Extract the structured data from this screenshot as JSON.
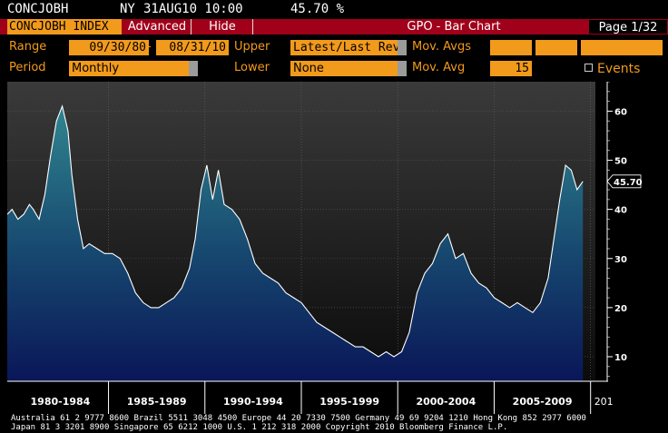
{
  "header": {
    "ticker": "CONCJOBH",
    "location": "NY",
    "datetime": "31AUG10 10:00",
    "value": "45.70 %"
  },
  "toolbar": {
    "security": "CONCJOBH INDEX",
    "advanced_label": "Advanced",
    "hide_label": "Hide",
    "function_title": "GPO - Bar Chart",
    "page": "Page 1/32"
  },
  "params": {
    "range_label": "Range",
    "range_start": "09/30/80",
    "range_sep": "-",
    "range_end": "08/31/10",
    "upper_label": "Upper",
    "upper_value": "Latest/Last Revi",
    "movavgs_label": "Mov. Avgs",
    "period_label": "Period",
    "period_value": "Monthly",
    "lower_label": "Lower",
    "lower_value": "None",
    "movavg_label": "Mov. Avg",
    "movavg_value": "15",
    "events_label": "Events"
  },
  "colors": {
    "accent": "#f29a1b",
    "function_bar": "#a0001a",
    "area_top": "#2e7f8c",
    "area_bottom": "#0a1658",
    "line": "#ffffff"
  },
  "chart_data": {
    "type": "area",
    "title": "",
    "xlabel": "",
    "ylabel": "",
    "ylim": [
      5,
      66
    ],
    "xlim": [
      1980.75,
      2011.25
    ],
    "y_ticks": [
      "10",
      "20",
      "30",
      "40",
      "50",
      "60"
    ],
    "x_periods": [
      "1980-1984",
      "1985-1989",
      "1990-1994",
      "1995-1999",
      "2000-2004",
      "2005-2009",
      "201"
    ],
    "last_value_label": "45.70",
    "grid": true,
    "x": [
      1980.75,
      1981.0,
      1981.3,
      1981.6,
      1981.9,
      1982.1,
      1982.4,
      1982.7,
      1983.0,
      1983.3,
      1983.6,
      1983.9,
      1984.1,
      1984.4,
      1984.7,
      1985.0,
      1985.4,
      1985.8,
      1986.2,
      1986.6,
      1987.0,
      1987.4,
      1987.8,
      1988.2,
      1988.6,
      1989.0,
      1989.4,
      1989.8,
      1990.2,
      1990.5,
      1990.8,
      1991.1,
      1991.4,
      1991.7,
      1992.0,
      1992.4,
      1992.8,
      1993.2,
      1993.6,
      1994.0,
      1994.4,
      1994.8,
      1995.2,
      1995.6,
      1996.0,
      1996.4,
      1996.8,
      1997.2,
      1997.6,
      1998.0,
      1998.4,
      1998.8,
      1999.2,
      1999.6,
      2000.0,
      2000.4,
      2000.8,
      2001.2,
      2001.6,
      2002.0,
      2002.4,
      2002.8,
      2003.2,
      2003.6,
      2004.0,
      2004.4,
      2004.8,
      2005.2,
      2005.6,
      2006.0,
      2006.4,
      2006.8,
      2007.2,
      2007.6,
      2008.0,
      2008.4,
      2008.8,
      2009.1,
      2009.4,
      2009.7,
      2010.0,
      2010.3,
      2010.6
    ],
    "values": [
      39,
      40,
      38,
      39,
      41,
      40,
      38,
      43,
      51,
      58,
      61,
      56,
      47,
      38,
      32,
      33,
      32,
      31,
      31,
      30,
      27,
      23,
      21,
      20,
      20,
      21,
      22,
      24,
      28,
      34,
      44,
      49,
      42,
      48,
      41,
      40,
      38,
      34,
      29,
      27,
      26,
      25,
      23,
      22,
      21,
      19,
      17,
      16,
      15,
      14,
      13,
      12,
      12,
      11,
      10,
      11,
      10,
      11,
      15,
      23,
      27,
      29,
      33,
      35,
      30,
      31,
      27,
      25,
      24,
      22,
      21,
      20,
      21,
      20,
      19,
      21,
      26,
      34,
      42,
      49,
      48,
      44,
      45.7
    ]
  },
  "footer": {
    "line1": "Australia 61 2 9777 8600 Brazil 5511 3048 4500 Europe 44 20 7330 7500 Germany 49 69 9204 1210 Hong Kong 852 2977 6000",
    "line2": "Japan 81 3 3201 8900          Singapore 65 6212 1000          U.S. 1 212 318 2000          Copyright 2010 Bloomberg Finance L.P."
  }
}
